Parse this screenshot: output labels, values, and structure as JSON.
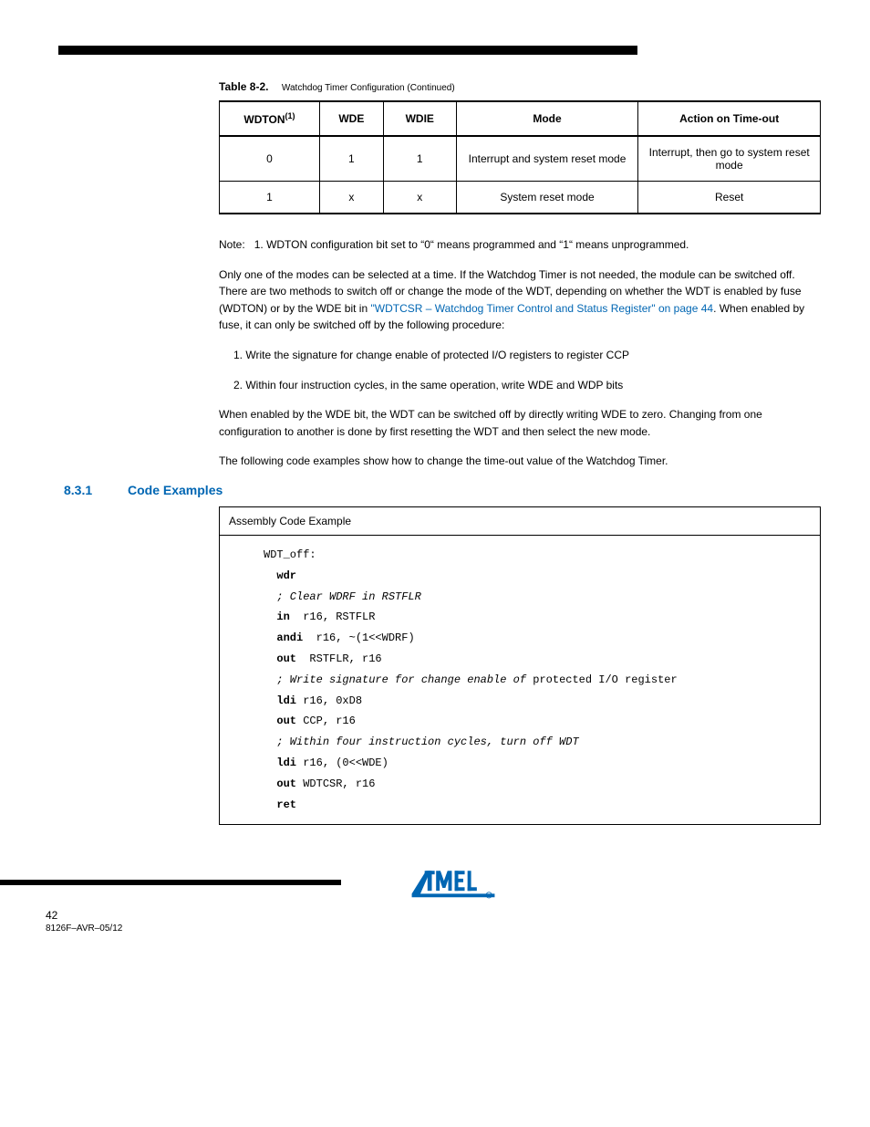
{
  "header": {
    "table_cont_label": "Table 8-2.",
    "table_cont_sub": "Watchdog Timer Configuration (Continued)"
  },
  "table": {
    "columns": [
      "WDTON(1)",
      "WDE",
      "WDIE",
      "Mode",
      "Action on Time-out"
    ],
    "col_super": "(1)",
    "col0_plain": "WDTON",
    "rows": [
      [
        "0",
        "1",
        "1",
        "Interrupt and system reset mode",
        "Interrupt, then go to system reset mode"
      ],
      [
        "1",
        "x",
        "x",
        "System reset mode",
        "Reset"
      ]
    ]
  },
  "note": {
    "label": "Note:",
    "num": "1.",
    "text": "WDTON configuration bit set to “0“ means programmed and “1“ means unprogrammed."
  },
  "body": {
    "p1a": "Only one of the modes can be selected at a time. If the Watchdog Timer is not needed, the module can be switched off. There are two methods to switch off or change the mode of the WDT, depending on whether the WDT is enabled by fuse (WDTON) or by the WDE bit in ",
    "p1b": "\"WDTCSR – Watchdog Timer Control and Status Register\" on page 44",
    "p1c": ". When enabled by fuse, it can only be switched off by the following procedure:",
    "li1": "1. Write the signature for change enable of protected I/O registers to register CCP",
    "li2": "2. Within four instruction cycles, in the same operation, write WDE and WDP bits",
    "p2": "When enabled by the WDE bit, the WDT can be switched off by directly writing WDE to zero. Changing from one configuration to another is done by first resetting the WDT and then select the new mode.",
    "p3": "The following code examples show how to change the time-out value of the Watchdog Timer."
  },
  "section": {
    "num": "8.3.1",
    "title": "Code Examples"
  },
  "code": {
    "head_label": "Assembly Code Example",
    "lines": [
      {
        "indent": 0,
        "cls": "",
        "text": "WDT_off:"
      },
      {
        "indent": 1,
        "cls": "kw",
        "text": "wdr"
      },
      {
        "indent": 1,
        "cls": "it",
        "text": "; Clear WDRF in RSTFLR"
      },
      {
        "indent": 1,
        "cls": "",
        "pre": "in",
        "rest": "  r16, RSTFLR"
      },
      {
        "indent": 1,
        "cls": "",
        "pre": "andi",
        "rest": "  r16, ~(1<<WDRF)"
      },
      {
        "indent": 1,
        "cls": "",
        "pre": "out",
        "rest": "  RSTFLR, r16"
      },
      {
        "indent": 1,
        "cls": "",
        "mix_it": "; Write signature for change enable of ",
        "mix_rest": "protected I/O register"
      },
      {
        "indent": 1,
        "cls": "",
        "pre": "ldi",
        "rest": " r16, 0xD8"
      },
      {
        "indent": 1,
        "cls": "",
        "pre": "out",
        "rest": " CCP, r16"
      },
      {
        "indent": 1,
        "cls": "it",
        "text": "; Within four instruction cycles, turn off WDT"
      },
      {
        "indent": 1,
        "cls": "",
        "pre": "ldi",
        "rest": " r16, (0<<WDE)"
      },
      {
        "indent": 1,
        "cls": "",
        "pre": "out",
        "rest": " WDTCSR, r16"
      },
      {
        "indent": 1,
        "cls": "kw",
        "text": "ret"
      }
    ]
  },
  "footer": {
    "page": "42",
    "doc": "8126F–AVR–05/12",
    "logo_color": "#0066b3"
  }
}
